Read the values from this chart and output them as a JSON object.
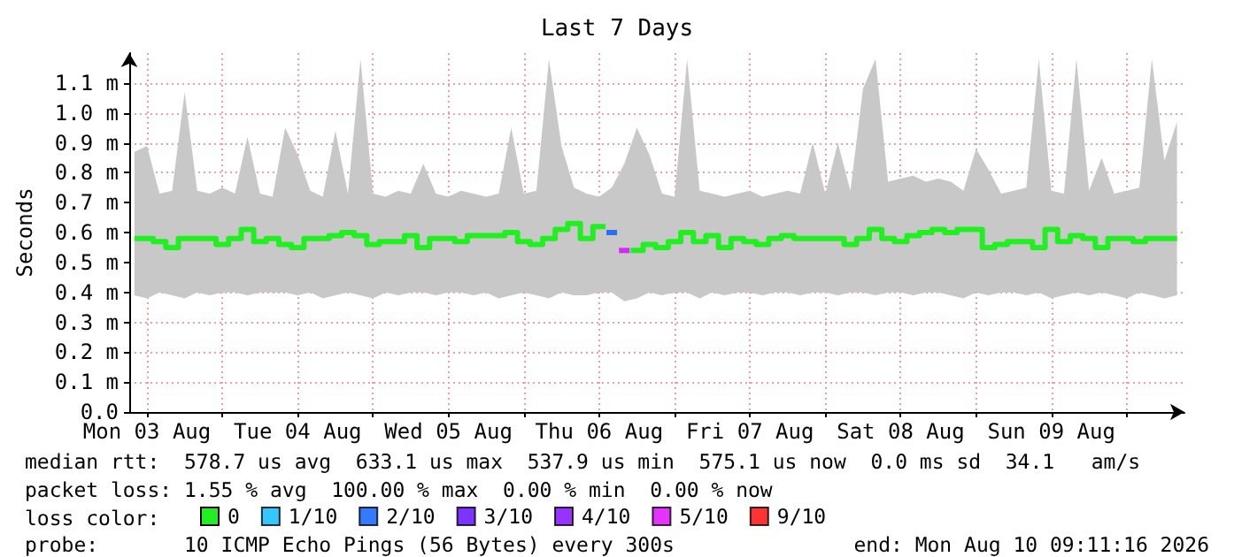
{
  "chart_data": {
    "type": "step",
    "title": "Last 7 Days",
    "ylabel": "Seconds",
    "legend_title": "loss color:",
    "legend": "bottom",
    "grid": true,
    "xlim": [
      "2026-08-03T09:11",
      "2026-08-10T09:11"
    ],
    "xticks": [
      {
        "value": "2026-08-03T12:00",
        "label": "Mon 03 Aug"
      },
      {
        "value": "2026-08-04T00:00",
        "label": null
      },
      {
        "value": "2026-08-04T12:00",
        "label": "Tue 04 Aug"
      },
      {
        "value": "2026-08-05T00:00",
        "label": null
      },
      {
        "value": "2026-08-05T12:00",
        "label": "Wed 05 Aug"
      },
      {
        "value": "2026-08-06T00:00",
        "label": null
      },
      {
        "value": "2026-08-06T12:00",
        "label": "Thu 06 Aug"
      },
      {
        "value": "2026-08-07T00:00",
        "label": null
      },
      {
        "value": "2026-08-07T12:00",
        "label": "Fri 07 Aug"
      },
      {
        "value": "2026-08-08T00:00",
        "label": null
      },
      {
        "value": "2026-08-08T12:00",
        "label": "Sat 08 Aug"
      },
      {
        "value": "2026-08-09T00:00",
        "label": null
      },
      {
        "value": "2026-08-09T12:00",
        "label": "Sun 09 Aug"
      },
      {
        "value": "2026-08-10T00:00",
        "label": null
      }
    ],
    "ylim": [
      0,
      1.2
    ],
    "yticks": [
      {
        "value": 0,
        "label": "0.0"
      },
      {
        "value": 0.1,
        "label": "0.1 m"
      },
      {
        "value": 0.2,
        "label": "0.2 m"
      },
      {
        "value": 0.3,
        "label": "0.3 m"
      },
      {
        "value": 0.4,
        "label": "0.4 m"
      },
      {
        "value": 0.5,
        "label": "0.5 m"
      },
      {
        "value": 0.6,
        "label": "0.6 m"
      },
      {
        "value": 0.7,
        "label": "0.7 m"
      },
      {
        "value": 0.8,
        "label": "0.8 m"
      },
      {
        "value": 0.9,
        "label": "0.9 m"
      },
      {
        "value": 1.0,
        "label": "1.0 m"
      },
      {
        "value": 1.1,
        "label": "1.1 m"
      }
    ],
    "x": [
      "2026-08-03T10:00",
      "2026-08-03T12:00",
      "2026-08-03T14:00",
      "2026-08-03T16:00",
      "2026-08-03T18:00",
      "2026-08-03T20:00",
      "2026-08-03T22:00",
      "2026-08-04T00:00",
      "2026-08-04T02:00",
      "2026-08-04T04:00",
      "2026-08-04T06:00",
      "2026-08-04T08:00",
      "2026-08-04T10:00",
      "2026-08-04T12:00",
      "2026-08-04T14:00",
      "2026-08-04T16:00",
      "2026-08-04T18:00",
      "2026-08-04T20:00",
      "2026-08-04T22:00",
      "2026-08-05T00:00",
      "2026-08-05T02:00",
      "2026-08-05T04:00",
      "2026-08-05T06:00",
      "2026-08-05T08:00",
      "2026-08-05T10:00",
      "2026-08-05T12:00",
      "2026-08-05T14:00",
      "2026-08-05T16:00",
      "2026-08-05T18:00",
      "2026-08-05T20:00",
      "2026-08-05T22:00",
      "2026-08-06T00:00",
      "2026-08-06T02:00",
      "2026-08-06T04:00",
      "2026-08-06T06:00",
      "2026-08-06T08:00",
      "2026-08-06T10:00",
      "2026-08-06T12:00",
      "2026-08-06T14:00",
      "2026-08-06T16:00",
      "2026-08-06T18:00",
      "2026-08-06T20:00",
      "2026-08-06T22:00",
      "2026-08-07T00:00",
      "2026-08-07T02:00",
      "2026-08-07T04:00",
      "2026-08-07T06:00",
      "2026-08-07T08:00",
      "2026-08-07T10:00",
      "2026-08-07T12:00",
      "2026-08-07T14:00",
      "2026-08-07T16:00",
      "2026-08-07T18:00",
      "2026-08-07T20:00",
      "2026-08-07T22:00",
      "2026-08-08T00:00",
      "2026-08-08T02:00",
      "2026-08-08T04:00",
      "2026-08-08T06:00",
      "2026-08-08T08:00",
      "2026-08-08T10:00",
      "2026-08-08T12:00",
      "2026-08-08T14:00",
      "2026-08-08T16:00",
      "2026-08-08T18:00",
      "2026-08-08T20:00",
      "2026-08-08T22:00",
      "2026-08-09T00:00",
      "2026-08-09T02:00",
      "2026-08-09T04:00",
      "2026-08-09T06:00",
      "2026-08-09T08:00",
      "2026-08-09T10:00",
      "2026-08-09T12:00",
      "2026-08-09T14:00",
      "2026-08-09T16:00",
      "2026-08-09T18:00",
      "2026-08-09T20:00",
      "2026-08-09T22:00",
      "2026-08-10T00:00",
      "2026-08-10T02:00",
      "2026-08-10T04:00",
      "2026-08-10T06:00",
      "2026-08-10T08:00"
    ],
    "series": [
      {
        "name": "0",
        "color": "#20f020",
        "values": [
          0.58,
          0.58,
          0.57,
          0.55,
          0.58,
          0.58,
          0.58,
          0.56,
          0.58,
          0.61,
          0.57,
          0.58,
          0.56,
          0.55,
          0.58,
          0.58,
          0.59,
          0.6,
          0.59,
          0.56,
          0.57,
          0.57,
          0.59,
          0.55,
          0.58,
          0.58,
          0.57,
          0.59,
          0.59,
          0.59,
          0.6,
          0.57,
          0.56,
          0.58,
          0.61,
          0.63,
          0.58,
          0.62,
          null,
          null,
          0.54,
          0.56,
          0.55,
          0.57,
          0.6,
          0.57,
          0.59,
          0.55,
          0.58,
          0.57,
          0.56,
          0.58,
          0.59,
          0.58,
          0.58,
          0.58,
          0.58,
          0.56,
          0.58,
          0.61,
          0.58,
          0.57,
          0.59,
          0.6,
          0.61,
          0.6,
          0.61,
          0.61,
          0.55,
          0.56,
          0.57,
          0.57,
          0.55,
          0.61,
          0.57,
          0.59,
          0.58,
          0.55,
          0.58,
          0.58,
          0.57,
          0.58,
          0.58,
          0.58
        ],
        "lower": [
          0.39,
          0.38,
          0.4,
          0.39,
          0.38,
          0.4,
          0.39,
          0.4,
          0.4,
          0.39,
          0.4,
          0.4,
          0.4,
          0.39,
          0.4,
          0.38,
          0.39,
          0.4,
          0.39,
          0.38,
          0.4,
          0.39,
          0.4,
          0.4,
          0.39,
          0.4,
          0.4,
          0.39,
          0.4,
          0.38,
          0.39,
          0.4,
          0.39,
          0.38,
          0.4,
          0.39,
          0.39,
          0.4,
          0.4,
          0.37,
          0.38,
          0.4,
          0.39,
          0.4,
          0.4,
          0.38,
          0.4,
          0.39,
          0.4,
          0.4,
          0.39,
          0.4,
          0.4,
          0.39,
          0.4,
          0.4,
          0.39,
          0.4,
          0.4,
          0.39,
          0.4,
          0.4,
          0.39,
          0.4,
          0.4,
          0.39,
          0.38,
          0.4,
          0.39,
          0.4,
          0.4,
          0.39,
          0.4,
          0.38,
          0.39,
          0.4,
          0.39,
          0.4,
          0.39,
          0.38,
          0.4,
          0.39,
          0.38,
          0.39
        ],
        "upper": [
          0.87,
          0.89,
          0.73,
          0.74,
          1.07,
          0.74,
          0.73,
          0.75,
          0.73,
          0.92,
          0.73,
          0.72,
          0.95,
          0.86,
          0.74,
          0.72,
          0.94,
          0.73,
          1.18,
          0.73,
          0.72,
          0.74,
          0.73,
          0.83,
          0.73,
          0.72,
          0.74,
          0.73,
          0.72,
          0.73,
          0.95,
          0.73,
          0.74,
          1.18,
          0.89,
          0.75,
          0.73,
          0.72,
          0.75,
          0.83,
          0.95,
          0.86,
          0.73,
          0.72,
          1.18,
          0.74,
          0.73,
          0.72,
          0.73,
          0.74,
          0.72,
          0.73,
          0.74,
          0.73,
          0.9,
          0.73,
          0.9,
          0.74,
          1.08,
          1.18,
          0.77,
          0.78,
          0.79,
          0.77,
          0.78,
          0.77,
          0.74,
          0.88,
          0.81,
          0.73,
          0.74,
          0.75,
          1.18,
          0.74,
          0.73,
          1.18,
          0.74,
          0.85,
          0.73,
          0.74,
          0.75,
          1.18,
          0.84,
          0.97
        ]
      },
      {
        "name": "1/10",
        "color": "#00b8ff",
        "type": "scatter",
        "marker": "square",
        "values": [
          null,
          null,
          null,
          null,
          null,
          null,
          null,
          null,
          null,
          null,
          null,
          null,
          null,
          null,
          null,
          null,
          null,
          null,
          null,
          null,
          null,
          null,
          null,
          null,
          null,
          null,
          null,
          null,
          null,
          null,
          null,
          null,
          null,
          null,
          null,
          null,
          null,
          null,
          null,
          null,
          null,
          null,
          null,
          null,
          null,
          null,
          null,
          null,
          null,
          null,
          null,
          null,
          null,
          null,
          null,
          null,
          null,
          null,
          null,
          null,
          null,
          null,
          null,
          null,
          null,
          null,
          null,
          null,
          null,
          null,
          null,
          null,
          null,
          null,
          null,
          null,
          null,
          null,
          null,
          null,
          null,
          null,
          null,
          null
        ]
      },
      {
        "name": "2/10",
        "color": "#0059ff",
        "type": "scatter",
        "marker": "square",
        "x": [
          "2026-08-06T14:00"
        ],
        "values": [
          0.6
        ]
      },
      {
        "name": "3/10",
        "color": "#5e00ff",
        "type": "scatter",
        "marker": "square",
        "values": [
          null,
          null,
          null,
          null,
          null,
          null,
          null,
          null,
          null,
          null,
          null,
          null,
          null,
          null,
          null,
          null,
          null,
          null,
          null,
          null,
          null,
          null,
          null,
          null,
          null,
          null,
          null,
          null,
          null,
          null,
          null,
          null,
          null,
          null,
          null,
          null,
          null,
          null,
          null,
          null,
          null,
          null,
          null,
          null,
          null,
          null,
          null,
          null,
          null,
          null,
          null,
          null,
          null,
          null,
          null,
          null,
          null,
          null,
          null,
          null,
          null,
          null,
          null,
          null,
          null,
          null,
          null,
          null,
          null,
          null,
          null,
          null,
          null,
          null,
          null,
          null,
          null,
          null,
          null,
          null,
          null,
          null,
          null,
          null
        ]
      },
      {
        "name": "4/10",
        "color": "#7e00ff",
        "type": "scatter",
        "marker": "square",
        "values": [
          null,
          null,
          null,
          null,
          null,
          null,
          null,
          null,
          null,
          null,
          null,
          null,
          null,
          null,
          null,
          null,
          null,
          null,
          null,
          null,
          null,
          null,
          null,
          null,
          null,
          null,
          null,
          null,
          null,
          null,
          null,
          null,
          null,
          null,
          null,
          null,
          null,
          null,
          null,
          null,
          null,
          null,
          null,
          null,
          null,
          null,
          null,
          null,
          null,
          null,
          null,
          null,
          null,
          null,
          null,
          null,
          null,
          null,
          null,
          null,
          null,
          null,
          null,
          null,
          null,
          null,
          null,
          null,
          null,
          null,
          null,
          null,
          null,
          null,
          null,
          null,
          null,
          null,
          null,
          null,
          null,
          null,
          null,
          null
        ]
      },
      {
        "name": "5/10",
        "color": "#dd00ff",
        "type": "scatter",
        "marker": "square",
        "x": [
          "2026-08-06T16:00"
        ],
        "values": [
          0.54
        ]
      },
      {
        "name": "9/10",
        "color": "#ff0000",
        "type": "scatter",
        "marker": "square",
        "values": [
          null,
          null,
          null,
          null,
          null,
          null,
          null,
          null,
          null,
          null,
          null,
          null,
          null,
          null,
          null,
          null,
          null,
          null,
          null,
          null,
          null,
          null,
          null,
          null,
          null,
          null,
          null,
          null,
          null,
          null,
          null,
          null,
          null,
          null,
          null,
          null,
          null,
          null,
          null,
          null,
          null,
          null,
          null,
          null,
          null,
          null,
          null,
          null,
          null,
          null,
          null,
          null,
          null,
          null,
          null,
          null,
          null,
          null,
          null,
          null,
          null,
          null,
          null,
          null,
          null,
          null,
          null,
          null,
          null,
          null,
          null,
          null,
          null,
          null,
          null,
          null,
          null,
          null,
          null,
          null,
          null,
          null,
          null,
          null
        ]
      }
    ],
    "annotations": [
      "median rtt:  578.7 us avg  633.1 us max  537.9 us min  575.1 us now  0.0 ms sd  34.1   am/s",
      "packet loss: 1.55 % avg  100.00 % max  0.00 % min  0.00 % now",
      "probe:       10 ICMP Echo Pings (56 Bytes) every 300s",
      "end: Mon Aug 10 09:11:16 2026"
    ]
  }
}
